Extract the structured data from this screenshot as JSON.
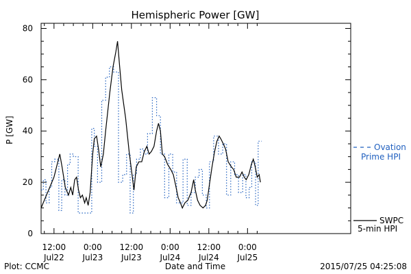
{
  "chart_data": {
    "type": "line",
    "title": "Hemispheric Power [GW]",
    "xlabel": "Date and Time",
    "ylabel": "P [GW]",
    "xlim_hours": [
      -16,
      80
    ],
    "ylim": [
      0,
      82
    ],
    "y_ticks": [
      0,
      20,
      40,
      60,
      80
    ],
    "x_ticks": [
      {
        "h": -12,
        "time": "12:00",
        "date": "Jul22"
      },
      {
        "h": 0,
        "time": "0:00",
        "date": "Jul23"
      },
      {
        "h": 12,
        "time": "12:00",
        "date": "Jul23"
      },
      {
        "h": 24,
        "time": "0:00",
        "date": "Jul24"
      },
      {
        "h": 36,
        "time": "12:00",
        "date": "Jul24"
      },
      {
        "h": 48,
        "time": "0:00",
        "date": "Jul25"
      }
    ],
    "x_unit_note": "",
    "series": [
      {
        "name": "Ovation Prime HPI",
        "legend_line1": "Ovation",
        "legend_line2": "Prime HPI",
        "color": "#1f5fbf",
        "style": "dashed-step",
        "points": [
          [
            -16,
            17
          ],
          [
            -15.3,
            21
          ],
          [
            -14.5,
            12
          ],
          [
            -13.5,
            18
          ],
          [
            -12.7,
            28
          ],
          [
            -11.8,
            29
          ],
          [
            -10.5,
            9
          ],
          [
            -9.6,
            21
          ],
          [
            -8.6,
            15
          ],
          [
            -7.8,
            27
          ],
          [
            -7,
            31
          ],
          [
            -6,
            30
          ],
          [
            -4.5,
            8
          ],
          [
            -1,
            8
          ],
          [
            -0.3,
            41
          ],
          [
            0.5,
            34
          ],
          [
            1.5,
            20
          ],
          [
            2.8,
            52
          ],
          [
            4,
            61
          ],
          [
            5.2,
            65
          ],
          [
            6.5,
            63
          ],
          [
            8,
            20
          ],
          [
            9.3,
            23
          ],
          [
            10.5,
            31
          ],
          [
            11.6,
            8
          ],
          [
            12.6,
            23
          ],
          [
            13.6,
            29
          ],
          [
            14.8,
            33
          ],
          [
            15.8,
            31
          ],
          [
            17,
            39
          ],
          [
            18.5,
            53
          ],
          [
            19.8,
            46
          ],
          [
            21,
            31
          ],
          [
            22.3,
            14
          ],
          [
            23.6,
            31
          ],
          [
            24.8,
            24
          ],
          [
            26,
            12
          ],
          [
            28,
            29
          ],
          [
            29.3,
            11
          ],
          [
            30.5,
            16
          ],
          [
            31.8,
            22
          ],
          [
            33,
            25
          ],
          [
            34,
            15
          ],
          [
            35.2,
            10
          ],
          [
            36.2,
            28
          ],
          [
            37.5,
            38
          ],
          [
            39,
            31
          ],
          [
            40.3,
            35
          ],
          [
            41.5,
            15
          ],
          [
            42.8,
            28
          ],
          [
            44,
            23
          ],
          [
            45.2,
            16
          ],
          [
            46.5,
            23
          ],
          [
            47.5,
            14
          ],
          [
            48.5,
            18
          ],
          [
            49.3,
            28
          ],
          [
            50.5,
            11
          ],
          [
            51.3,
            36
          ],
          [
            52,
            36
          ]
        ]
      },
      {
        "name": "SWPC 5-min HPI",
        "legend_line1": "SWPC",
        "legend_line2": "5-min HPI",
        "color": "#000000",
        "style": "solid",
        "points": [
          [
            -16,
            10
          ],
          [
            -15,
            13
          ],
          [
            -14,
            16
          ],
          [
            -13,
            19
          ],
          [
            -12,
            22
          ],
          [
            -11,
            27
          ],
          [
            -10.2,
            31
          ],
          [
            -9.5,
            26
          ],
          [
            -8.5,
            18
          ],
          [
            -7.5,
            15
          ],
          [
            -6.8,
            18
          ],
          [
            -6.2,
            15
          ],
          [
            -5.6,
            21
          ],
          [
            -5,
            22
          ],
          [
            -4.4,
            17
          ],
          [
            -3.8,
            14
          ],
          [
            -3.2,
            15
          ],
          [
            -2.5,
            12
          ],
          [
            -2,
            14
          ],
          [
            -1.4,
            11
          ],
          [
            -0.8,
            16
          ],
          [
            0,
            31
          ],
          [
            0.5,
            37
          ],
          [
            1.2,
            38
          ],
          [
            1.8,
            33
          ],
          [
            2.5,
            26
          ],
          [
            3.3,
            31
          ],
          [
            4,
            40
          ],
          [
            5.3,
            55
          ],
          [
            6.3,
            65
          ],
          [
            7.2,
            71
          ],
          [
            7.7,
            75
          ],
          [
            8.3,
            66
          ],
          [
            9,
            56
          ],
          [
            10.2,
            45
          ],
          [
            11.3,
            32
          ],
          [
            12.3,
            22
          ],
          [
            12.8,
            17
          ],
          [
            13.5,
            26
          ],
          [
            14.3,
            28
          ],
          [
            15.2,
            28
          ],
          [
            16,
            32
          ],
          [
            16.8,
            34
          ],
          [
            17.5,
            31
          ],
          [
            18.2,
            32
          ],
          [
            19,
            34
          ],
          [
            19.8,
            40
          ],
          [
            20.4,
            43
          ],
          [
            21,
            40
          ],
          [
            21.6,
            31
          ],
          [
            22.3,
            30
          ],
          [
            23.2,
            27
          ],
          [
            24.2,
            25
          ],
          [
            25,
            23
          ],
          [
            25.7,
            19
          ],
          [
            26.5,
            14
          ],
          [
            27.2,
            12
          ],
          [
            27.8,
            10
          ],
          [
            28.6,
            12
          ],
          [
            29.5,
            13
          ],
          [
            30.5,
            16
          ],
          [
            31.3,
            21
          ],
          [
            31.8,
            17
          ],
          [
            32.5,
            13
          ],
          [
            33.3,
            11
          ],
          [
            34.2,
            10
          ],
          [
            35,
            11
          ],
          [
            35.5,
            13
          ],
          [
            36.3,
            20
          ],
          [
            37,
            26
          ],
          [
            37.8,
            32
          ],
          [
            38.5,
            36
          ],
          [
            39.2,
            38
          ],
          [
            39.7,
            37
          ],
          [
            40.5,
            35
          ],
          [
            41.2,
            33
          ],
          [
            42,
            28
          ],
          [
            43,
            26
          ],
          [
            43.7,
            25
          ],
          [
            44.5,
            22
          ],
          [
            45.5,
            22
          ],
          [
            46.3,
            24
          ],
          [
            47,
            22
          ],
          [
            47.6,
            21
          ],
          [
            48.4,
            23
          ],
          [
            49.2,
            27
          ],
          [
            49.8,
            29
          ],
          [
            50.4,
            26
          ],
          [
            51,
            22
          ],
          [
            51.6,
            23
          ],
          [
            52,
            20
          ]
        ]
      }
    ],
    "footer": {
      "left": "Plot: CCMC",
      "right": "2015/07/25 04:25:08"
    }
  }
}
